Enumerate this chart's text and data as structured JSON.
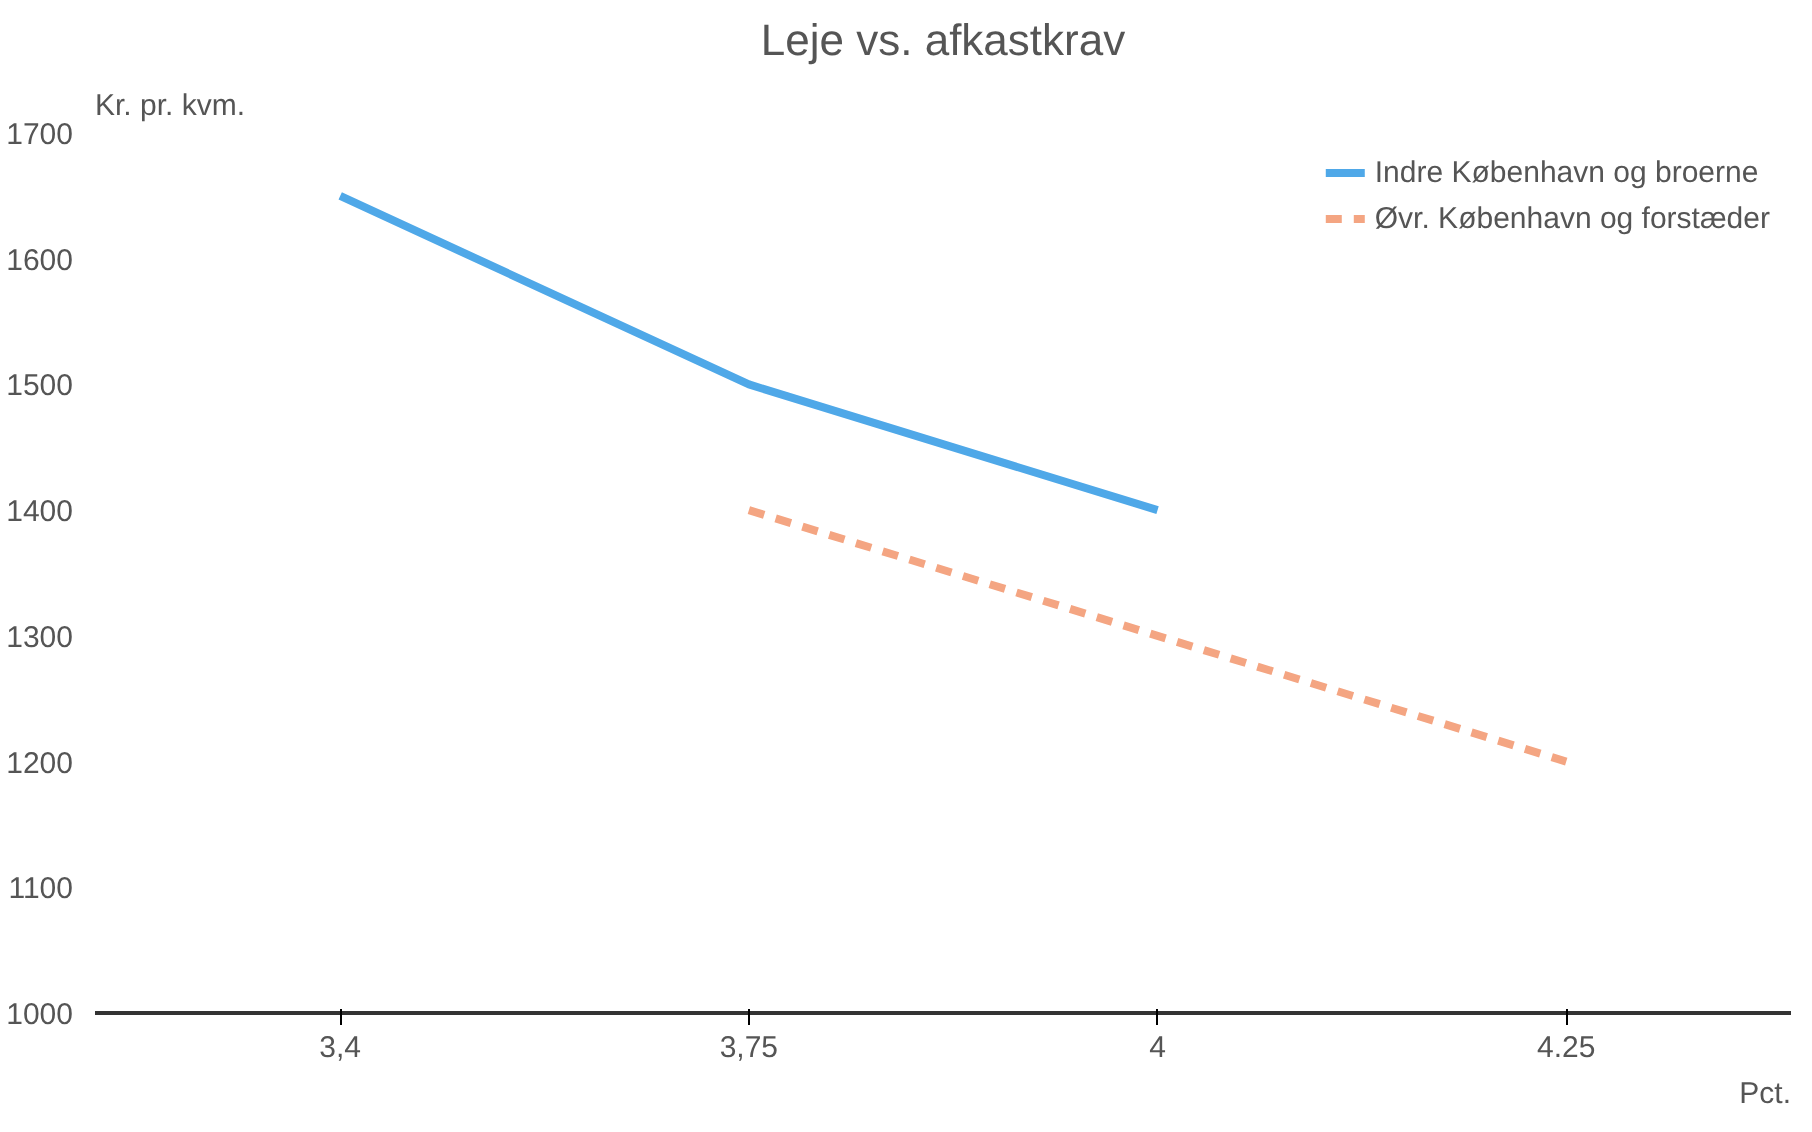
{
  "chart_data": {
    "type": "line",
    "title": "Leje vs. afkastkrav",
    "ylabel": "Kr. pr. kvm.",
    "xlabel": "Pct.",
    "categories": [
      "3,4",
      "3,75",
      "4",
      "4.25"
    ],
    "series": [
      {
        "name": "Indre København og broerne",
        "color": "#4fa8e8",
        "values": [
          1650,
          1500,
          1400,
          null
        ],
        "line_style": "solid"
      },
      {
        "name": "Øvr. København og forstæder",
        "color": "#f4a582",
        "values": [
          null,
          1400,
          1300,
          1200
        ],
        "line_style": "dashed"
      }
    ],
    "ylim": [
      1000,
      1700
    ],
    "yticks": [
      1000,
      1100,
      1200,
      1300,
      1400,
      1500,
      1600,
      1700
    ],
    "grid": false,
    "legend": "top right",
    "marker": "none"
  }
}
